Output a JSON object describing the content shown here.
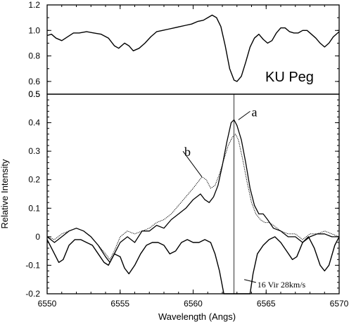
{
  "chart_data": [
    {
      "panel": "top",
      "type": "line",
      "annotation": "KU Peg",
      "xlim": [
        6550,
        6570
      ],
      "ylim": [
        0.5,
        1.2
      ],
      "yticks": [
        "0.5",
        "0.6",
        "0.8",
        "1.0",
        "1.2"
      ],
      "series": [
        {
          "points": [
            [
              6550,
              0.96
            ],
            [
              6550.3,
              0.97
            ],
            [
              6550.6,
              0.94
            ],
            [
              6551,
              0.92
            ],
            [
              6551.4,
              0.95
            ],
            [
              6551.8,
              0.98
            ],
            [
              6552.2,
              0.98
            ],
            [
              6552.7,
              0.99
            ],
            [
              6553.2,
              0.98
            ],
            [
              6553.7,
              0.97
            ],
            [
              6554.2,
              0.94
            ],
            [
              6554.6,
              0.88
            ],
            [
              6554.9,
              0.86
            ],
            [
              6555.3,
              0.9
            ],
            [
              6555.6,
              0.88
            ],
            [
              6555.9,
              0.84
            ],
            [
              6556.3,
              0.86
            ],
            [
              6556.7,
              0.9
            ],
            [
              6557.1,
              0.95
            ],
            [
              6557.5,
              0.99
            ],
            [
              6557.9,
              1.0
            ],
            [
              6558.3,
              1.01
            ],
            [
              6558.7,
              1.02
            ],
            [
              6559.1,
              1.03
            ],
            [
              6559.5,
              1.04
            ],
            [
              6559.9,
              1.05
            ],
            [
              6560.3,
              1.07
            ],
            [
              6560.7,
              1.08
            ],
            [
              6561,
              1.1
            ],
            [
              6561.3,
              1.12
            ],
            [
              6561.6,
              1.1
            ],
            [
              6561.9,
              1.03
            ],
            [
              6562.2,
              0.88
            ],
            [
              6562.5,
              0.7
            ],
            [
              6562.8,
              0.61
            ],
            [
              6563,
              0.6
            ],
            [
              6563.3,
              0.64
            ],
            [
              6563.6,
              0.75
            ],
            [
              6563.9,
              0.87
            ],
            [
              6564.2,
              0.94
            ],
            [
              6564.5,
              0.97
            ],
            [
              6564.8,
              0.93
            ],
            [
              6565.1,
              0.9
            ],
            [
              6565.4,
              0.92
            ],
            [
              6565.7,
              0.98
            ],
            [
              6566,
              1.02
            ],
            [
              6566.3,
              1.02
            ],
            [
              6566.6,
              0.99
            ],
            [
              6566.9,
              0.98
            ],
            [
              6567.2,
              0.98
            ],
            [
              6567.5,
              1.0
            ],
            [
              6567.8,
              1.0
            ],
            [
              6568.1,
              0.97
            ],
            [
              6568.4,
              0.94
            ],
            [
              6568.7,
              0.9
            ],
            [
              6569,
              0.87
            ],
            [
              6569.3,
              0.9
            ],
            [
              6569.6,
              0.95
            ],
            [
              6570,
              0.99
            ]
          ]
        }
      ]
    },
    {
      "panel": "bottom",
      "type": "line",
      "xlabel": "Wavelength (Angs)",
      "ylabel": "Relative Intensity",
      "xlim": [
        6550,
        6570
      ],
      "ylim": [
        -0.2,
        0.5
      ],
      "xticks": [
        "6550",
        "6555",
        "6560",
        "6565",
        "6570"
      ],
      "yticks": [
        "-0.2",
        "-0.1",
        "0",
        "0.1",
        "0.2",
        "0.3",
        "0.4",
        "0.5"
      ],
      "reference_line_x": 6562.8,
      "series": [
        {
          "name": "a",
          "style": "solid",
          "points": [
            [
              6550,
              0.0
            ],
            [
              6550.5,
              -0.02
            ],
            [
              6551,
              0.0
            ],
            [
              6551.5,
              0.02
            ],
            [
              6552,
              0.03
            ],
            [
              6552.5,
              0.02
            ],
            [
              6553,
              0.0
            ],
            [
              6553.5,
              -0.03
            ],
            [
              6554,
              -0.07
            ],
            [
              6554.3,
              -0.09
            ],
            [
              6554.6,
              -0.06
            ],
            [
              6555,
              -0.02
            ],
            [
              6555.5,
              0.0
            ],
            [
              6556,
              -0.02
            ],
            [
              6556.5,
              0.02
            ],
            [
              6557,
              0.02
            ],
            [
              6557.5,
              0.04
            ],
            [
              6558,
              0.03
            ],
            [
              6558.5,
              0.06
            ],
            [
              6559,
              0.08
            ],
            [
              6559.5,
              0.1
            ],
            [
              6560,
              0.13
            ],
            [
              6560.5,
              0.15
            ],
            [
              6560.8,
              0.13
            ],
            [
              6561.1,
              0.12
            ],
            [
              6561.4,
              0.14
            ],
            [
              6561.7,
              0.18
            ],
            [
              6562,
              0.25
            ],
            [
              6562.3,
              0.33
            ],
            [
              6562.6,
              0.4
            ],
            [
              6562.8,
              0.41
            ],
            [
              6563,
              0.39
            ],
            [
              6563.3,
              0.34
            ],
            [
              6563.6,
              0.26
            ],
            [
              6563.9,
              0.17
            ],
            [
              6564.2,
              0.11
            ],
            [
              6564.5,
              0.08
            ],
            [
              6564.8,
              0.08
            ],
            [
              6565.1,
              0.06
            ],
            [
              6565.5,
              0.03
            ],
            [
              6566,
              0.02
            ],
            [
              6566.5,
              0.0
            ],
            [
              6567,
              0.0
            ],
            [
              6567.5,
              -0.02
            ],
            [
              6568,
              0.0
            ],
            [
              6568.5,
              0.01
            ],
            [
              6569,
              0.01
            ],
            [
              6569.5,
              0.0
            ],
            [
              6570,
              0.0
            ]
          ]
        },
        {
          "name": "b",
          "style": "dotted",
          "points": [
            [
              6550,
              0.0
            ],
            [
              6550.5,
              -0.01
            ],
            [
              6551,
              0.01
            ],
            [
              6551.5,
              0.02
            ],
            [
              6552,
              0.03
            ],
            [
              6552.5,
              0.02
            ],
            [
              6553,
              0.0
            ],
            [
              6553.5,
              -0.03
            ],
            [
              6554,
              -0.06
            ],
            [
              6554.3,
              -0.08
            ],
            [
              6554.6,
              -0.05
            ],
            [
              6555,
              0.0
            ],
            [
              6555.5,
              0.02
            ],
            [
              6556,
              0.01
            ],
            [
              6556.5,
              0.02
            ],
            [
              6557,
              0.03
            ],
            [
              6557.5,
              0.05
            ],
            [
              6558,
              0.06
            ],
            [
              6558.5,
              0.08
            ],
            [
              6559,
              0.11
            ],
            [
              6559.5,
              0.14
            ],
            [
              6560,
              0.17
            ],
            [
              6560.3,
              0.19
            ],
            [
              6560.6,
              0.21
            ],
            [
              6560.9,
              0.2
            ],
            [
              6561.2,
              0.17
            ],
            [
              6561.5,
              0.18
            ],
            [
              6561.8,
              0.22
            ],
            [
              6562.1,
              0.27
            ],
            [
              6562.4,
              0.32
            ],
            [
              6562.7,
              0.35
            ],
            [
              6562.9,
              0.36
            ],
            [
              6563.1,
              0.34
            ],
            [
              6563.4,
              0.27
            ],
            [
              6563.7,
              0.19
            ],
            [
              6564,
              0.12
            ],
            [
              6564.3,
              0.08
            ],
            [
              6564.6,
              0.06
            ],
            [
              6564.9,
              0.05
            ],
            [
              6565.2,
              0.05
            ],
            [
              6565.5,
              0.04
            ],
            [
              6566,
              0.02
            ],
            [
              6566.5,
              0.01
            ],
            [
              6567,
              0.01
            ],
            [
              6567.5,
              -0.01
            ],
            [
              6568,
              0.01
            ],
            [
              6568.5,
              0.01
            ],
            [
              6569,
              0.02
            ],
            [
              6569.5,
              0.01
            ],
            [
              6570,
              0.0
            ]
          ]
        },
        {
          "name": "16 Vir 28km/s",
          "style": "solid",
          "points": [
            [
              6550,
              -0.01
            ],
            [
              6550.4,
              -0.05
            ],
            [
              6550.8,
              -0.09
            ],
            [
              6551.1,
              -0.08
            ],
            [
              6551.5,
              -0.03
            ],
            [
              6551.9,
              -0.01
            ],
            [
              6552.3,
              -0.01
            ],
            [
              6552.7,
              -0.02
            ],
            [
              6553.1,
              -0.03
            ],
            [
              6553.5,
              -0.06
            ],
            [
              6553.9,
              -0.09
            ],
            [
              6554.2,
              -0.1
            ],
            [
              6554.6,
              -0.06
            ],
            [
              6555,
              -0.07
            ],
            [
              6555.3,
              -0.11
            ],
            [
              6555.6,
              -0.13
            ],
            [
              6556,
              -0.1
            ],
            [
              6556.4,
              -0.06
            ],
            [
              6556.8,
              -0.03
            ],
            [
              6557.2,
              -0.02
            ],
            [
              6557.6,
              -0.02
            ],
            [
              6558,
              -0.03
            ],
            [
              6558.4,
              -0.06
            ],
            [
              6558.8,
              -0.05
            ],
            [
              6559.2,
              -0.02
            ],
            [
              6559.6,
              -0.01
            ],
            [
              6560,
              -0.02
            ],
            [
              6560.4,
              -0.02
            ],
            [
              6560.8,
              -0.01
            ],
            [
              6561.2,
              -0.02
            ],
            [
              6561.5,
              -0.06
            ],
            [
              6561.8,
              -0.12
            ],
            [
              6562.1,
              -0.2
            ],
            [
              6562.2,
              -0.2
            ],
            [
              6563.9,
              -0.2
            ],
            [
              6564.1,
              -0.13
            ],
            [
              6564.4,
              -0.06
            ],
            [
              6564.8,
              -0.03
            ],
            [
              6565.2,
              -0.01
            ],
            [
              6565.6,
              0.0
            ],
            [
              6566,
              -0.02
            ],
            [
              6566.4,
              -0.05
            ],
            [
              6566.8,
              -0.08
            ],
            [
              6567.1,
              -0.07
            ],
            [
              6567.5,
              -0.02
            ],
            [
              6567.9,
              0.0
            ],
            [
              6568.3,
              -0.04
            ],
            [
              6568.7,
              -0.1
            ],
            [
              6569,
              -0.12
            ],
            [
              6569.3,
              -0.1
            ],
            [
              6569.7,
              -0.03
            ],
            [
              6570,
              0.0
            ]
          ]
        }
      ],
      "annotations": [
        {
          "text": "a",
          "anchor": [
            6563.1,
            0.41
          ],
          "at": [
            6564.0,
            0.43
          ]
        },
        {
          "text": "b",
          "anchor": [
            6560.6,
            0.21
          ],
          "at": [
            6559.4,
            0.29
          ]
        },
        {
          "text": "16 Vir 28km/s",
          "anchor": [
            6563.5,
            -0.15
          ],
          "at": [
            6564.4,
            -0.17
          ]
        }
      ]
    }
  ]
}
